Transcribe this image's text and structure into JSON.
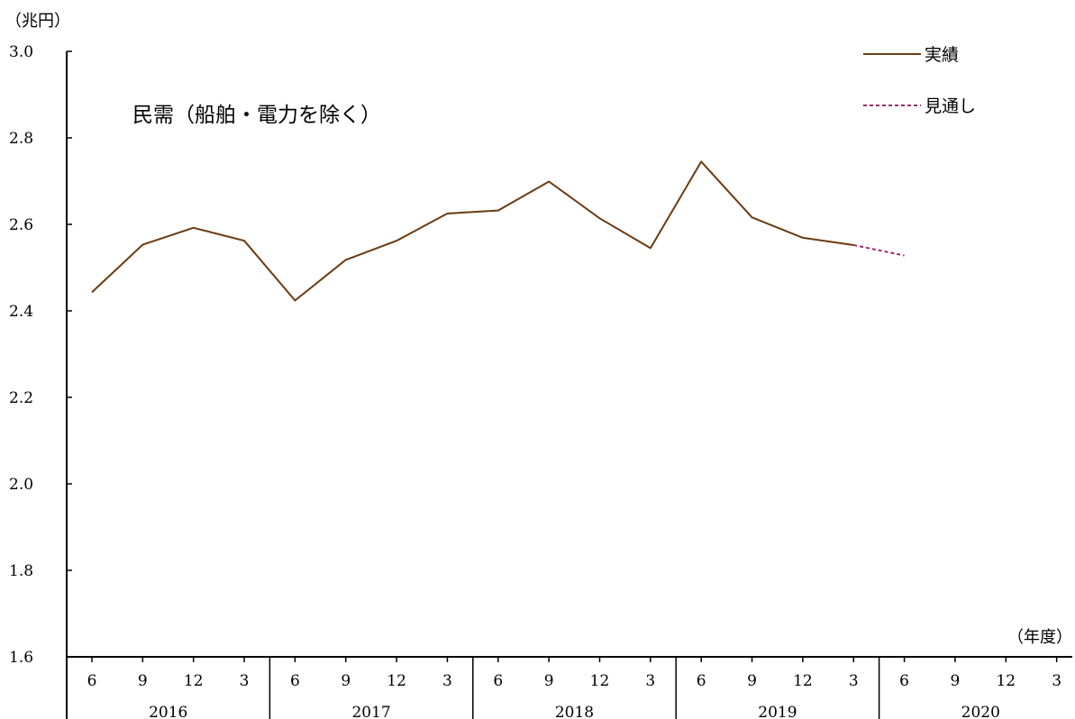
{
  "chart_data": {
    "type": "line",
    "title": "",
    "annotation": "民需（船舶・電力を除く）",
    "y_unit_label": "（兆円）",
    "x_unit_label": "（年度）",
    "ylim": [
      1.6,
      3.0
    ],
    "y_ticks": [
      "1.6",
      "1.8",
      "2.0",
      "2.2",
      "2.4",
      "2.6",
      "2.8",
      "3.0"
    ],
    "grid": false,
    "legend_position": "top-right",
    "x_quarter_labels": [
      "6",
      "9",
      "12",
      "3",
      "6",
      "9",
      "12",
      "3",
      "6",
      "9",
      "12",
      "3",
      "6",
      "9",
      "12",
      "3",
      "6",
      "9",
      "12",
      "3"
    ],
    "x_year_labels": [
      "2016",
      "2017",
      "2018",
      "2019",
      "2020"
    ],
    "series": [
      {
        "name": "実績",
        "color": "#6b3a0f",
        "style": "solid",
        "start_index": 0,
        "values": [
          2.443,
          2.553,
          2.592,
          2.562,
          2.424,
          2.518,
          2.562,
          2.625,
          2.632,
          2.699,
          2.614,
          2.545,
          2.745,
          2.616,
          2.569,
          2.552
        ]
      },
      {
        "name": "見通し",
        "color": "#9b2a6a",
        "style": "dashed",
        "start_index": 15,
        "values": [
          2.552,
          2.528
        ]
      }
    ]
  }
}
